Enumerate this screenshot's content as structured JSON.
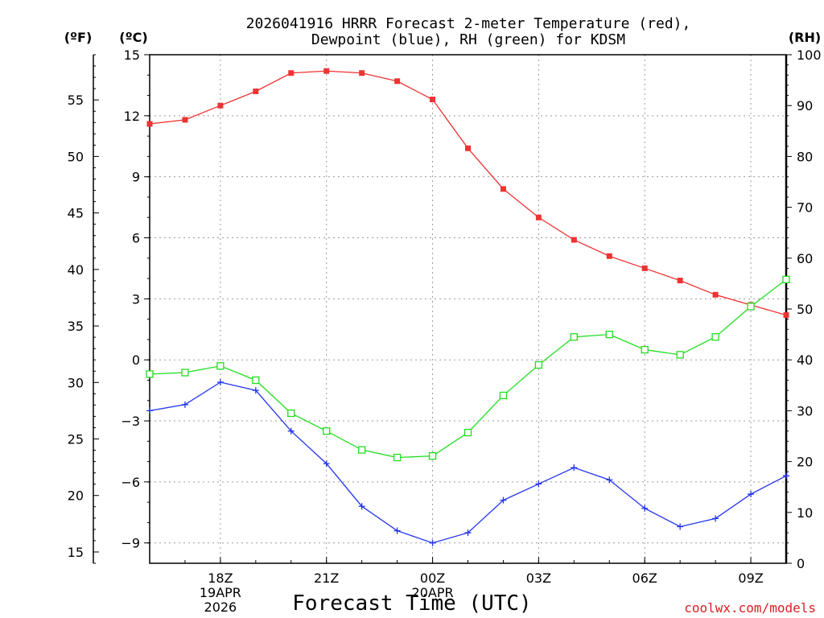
{
  "chart_data": {
    "type": "line",
    "title_lines": [
      "2026041916 HRRR Forecast 2-meter Temperature (red),",
      "Dewpoint (blue), RH (green) for KDSM"
    ],
    "xlabel": "Forecast Time (UTC)",
    "credit": "coolwx.com/models",
    "x_hours": [
      16,
      17,
      18,
      19,
      20,
      21,
      22,
      23,
      24,
      25,
      26,
      27,
      28,
      29,
      30,
      31,
      32,
      33,
      34
    ],
    "xlim": [
      16,
      34
    ],
    "x_ticks": [
      {
        "h": 18,
        "lines": [
          "18Z",
          "19APR",
          "2026"
        ]
      },
      {
        "h": 21,
        "lines": [
          "21Z"
        ]
      },
      {
        "h": 24,
        "lines": [
          "00Z",
          "20APR"
        ]
      },
      {
        "h": 27,
        "lines": [
          "03Z"
        ]
      },
      {
        "h": 30,
        "lines": [
          "06Z"
        ]
      },
      {
        "h": 33,
        "lines": [
          "09Z"
        ]
      }
    ],
    "axes": {
      "celsius": {
        "unit_label": "(ºC)",
        "lim": [
          -10,
          15
        ],
        "ticks": [
          15,
          12,
          9,
          6,
          3,
          0,
          -3,
          -6,
          -9
        ]
      },
      "fahrenheit": {
        "unit_label": "(ºF)",
        "ticks": [
          55,
          50,
          45,
          40,
          35,
          30,
          25,
          20,
          15
        ]
      },
      "rh": {
        "unit_label": "(RH)",
        "lim": [
          0,
          100
        ],
        "ticks": [
          100,
          90,
          80,
          70,
          60,
          50,
          40,
          30,
          20,
          10,
          0
        ]
      }
    },
    "series": [
      {
        "name": "2-meter Temperature",
        "axis": "celsius",
        "color": "#ee3333",
        "marker": "filled-square",
        "values": [
          11.6,
          11.8,
          12.5,
          13.2,
          14.1,
          14.2,
          14.1,
          13.7,
          12.8,
          10.4,
          8.4,
          7.0,
          5.9,
          5.1,
          4.5,
          3.9,
          3.2,
          2.7,
          2.2
        ]
      },
      {
        "name": "Dewpoint",
        "axis": "celsius",
        "color": "#2233ee",
        "marker": "plus",
        "values": [
          -2.5,
          -2.2,
          -1.1,
          -1.5,
          -3.5,
          -5.1,
          -7.2,
          -8.4,
          -9.0,
          -8.5,
          -6.9,
          -6.1,
          -5.3,
          -5.9,
          -7.3,
          -8.2,
          -7.8,
          -6.6,
          -5.7
        ]
      },
      {
        "name": "RH",
        "axis": "rh",
        "color": "#22dd22",
        "marker": "open-square",
        "values": [
          37.2,
          37.5,
          38.8,
          36.0,
          29.5,
          26.0,
          22.3,
          20.8,
          21.1,
          25.7,
          33.0,
          39.0,
          44.5,
          45.0,
          42.0,
          41.0,
          44.5,
          50.5,
          55.8
        ]
      }
    ]
  }
}
